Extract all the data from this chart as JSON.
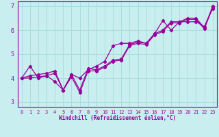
{
  "xlabel": "Windchill (Refroidissement éolien,°C)",
  "xlim": [
    -0.5,
    23.5
  ],
  "ylim": [
    2.8,
    7.2
  ],
  "xticks": [
    0,
    1,
    2,
    3,
    4,
    5,
    6,
    7,
    8,
    9,
    10,
    11,
    12,
    13,
    14,
    15,
    16,
    17,
    18,
    19,
    20,
    21,
    22,
    23
  ],
  "yticks": [
    3,
    4,
    5,
    6,
    7
  ],
  "bg_color": "#c8eef0",
  "line_color": "#990099",
  "grid_color": "#aadddd",
  "series": [
    [
      4.0,
      4.5,
      4.0,
      4.1,
      3.85,
      3.5,
      4.15,
      4.0,
      4.35,
      4.5,
      4.7,
      5.35,
      5.45,
      5.45,
      5.55,
      5.45,
      5.85,
      6.4,
      6.0,
      6.35,
      6.35,
      6.35,
      6.15,
      6.9
    ],
    [
      4.0,
      4.1,
      4.15,
      4.2,
      4.3,
      3.5,
      4.15,
      3.5,
      4.4,
      4.35,
      4.5,
      4.75,
      4.8,
      5.4,
      5.5,
      5.45,
      5.85,
      6.0,
      6.35,
      6.35,
      6.5,
      6.5,
      6.1,
      7.0
    ],
    [
      4.0,
      4.0,
      4.05,
      4.1,
      4.2,
      3.5,
      4.05,
      3.4,
      4.3,
      4.3,
      4.45,
      4.7,
      4.75,
      5.35,
      5.45,
      5.4,
      5.8,
      5.95,
      6.3,
      6.3,
      6.45,
      6.45,
      6.05,
      6.95
    ]
  ],
  "font_family": "monospace",
  "xlabel_fontsize": 5.5,
  "tick_fontsize_x": 5.0,
  "tick_fontsize_y": 6.0
}
